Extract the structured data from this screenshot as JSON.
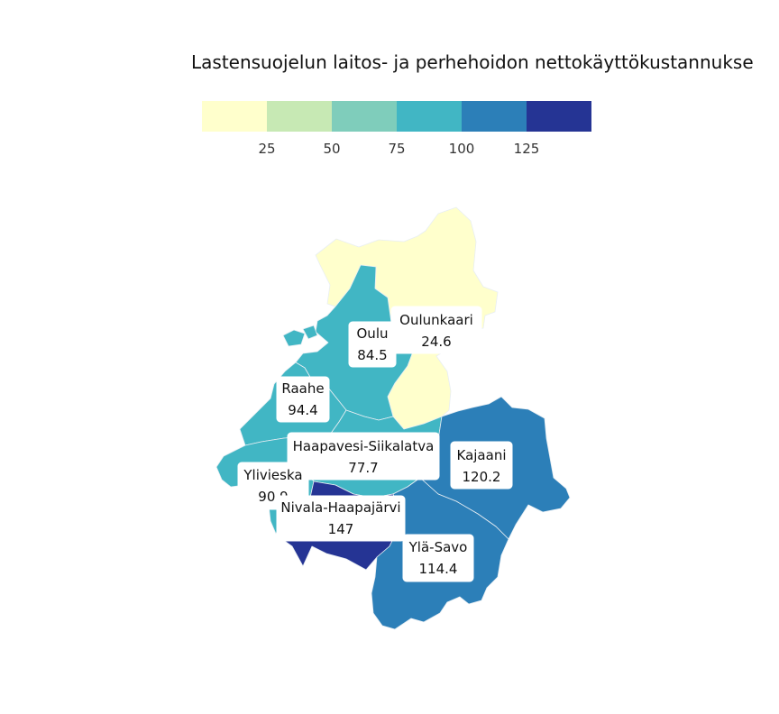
{
  "title": "Lastensuojelun laitos- ja perhehoidon nettokäyttökustannukse",
  "legend": {
    "ticks": [
      "25",
      "50",
      "75",
      "100",
      "125"
    ],
    "bins": [
      {
        "from": 0,
        "to": 25,
        "color": "#ffffcc"
      },
      {
        "from": 25,
        "to": 50,
        "color": "#c7e9b4"
      },
      {
        "from": 50,
        "to": 75,
        "color": "#7fcdbb"
      },
      {
        "from": 75,
        "to": 100,
        "color": "#41b6c4"
      },
      {
        "from": 100,
        "to": 125,
        "color": "#2c7fb8"
      },
      {
        "from": 125,
        "to": 150,
        "color": "#253494"
      }
    ]
  },
  "regions": [
    {
      "id": "oulunkaari",
      "name": "Oulunkaari",
      "value": "24.6"
    },
    {
      "id": "oulu",
      "name": "Oulu",
      "value": "84.5"
    },
    {
      "id": "raahe",
      "name": "Raahe",
      "value": "94.4"
    },
    {
      "id": "haapavesi-siikalatva",
      "name": "Haapavesi-Siikalatva",
      "value": "77.7"
    },
    {
      "id": "kajaani",
      "name": "Kajaani",
      "value": "120.2"
    },
    {
      "id": "ylivieska",
      "name": "Ylivieska",
      "value": "90.9"
    },
    {
      "id": "nivala-haapajarvi",
      "name": "Nivala-Haapajärvi",
      "value": "147"
    },
    {
      "id": "yla-savo",
      "name": "Ylä-Savo",
      "value": "114.4"
    }
  ]
}
